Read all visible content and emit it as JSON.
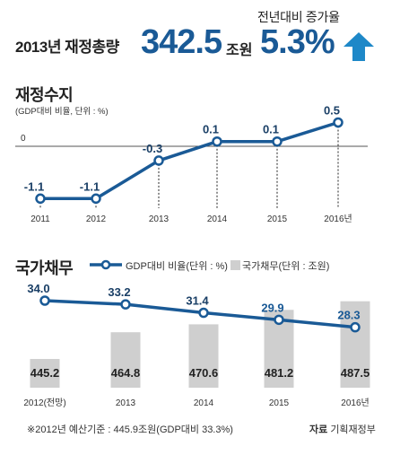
{
  "headline": {
    "label": "2013년 재정총량",
    "total_value": "342.5",
    "total_unit": "조원",
    "rate_label": "전년대비 증가율",
    "rate_value": "5.3%",
    "arrow_color": "#1e88c8"
  },
  "colors": {
    "line": "#1a5a96",
    "bar": "#cfcfcf",
    "dashed": "#222222"
  },
  "chart_data": [
    {
      "type": "line",
      "title": "재정수지",
      "subtitle": "(GDP대비 비율, 단위 : %)",
      "x": [
        "2011",
        "2012",
        "2013",
        "2014",
        "2015",
        "2016년"
      ],
      "series": [
        {
          "values": [
            -1.1,
            -1.1,
            -0.3,
            0.1,
            0.1,
            0.5
          ]
        }
      ],
      "data_labels": [
        "-1.1",
        "-1.1",
        "-0.3",
        "0.1",
        "0.1",
        "0.5"
      ],
      "zero_label": "0",
      "ylim": [
        -1.3,
        0.65
      ],
      "grid": false
    },
    {
      "type": "bar",
      "title": "국가채무",
      "categories": [
        "2012(전망)",
        "2013",
        "2014",
        "2015",
        "2016년"
      ],
      "series": [
        {
          "name": "GDP대비 비율(단위 : %)",
          "kind": "line",
          "values": [
            34.0,
            33.2,
            31.4,
            29.9,
            28.3
          ],
          "labels": [
            "34.0",
            "33.2",
            "31.4",
            "29.9",
            "28.3"
          ]
        },
        {
          "name": "국가채무(단위 : 조원)",
          "kind": "bar",
          "values": [
            445.2,
            464.8,
            470.6,
            481.2,
            487.5
          ],
          "labels": [
            "445.2",
            "464.8",
            "470.6",
            "481.2",
            "487.5"
          ]
        }
      ],
      "legend_position": "top-right"
    }
  ],
  "footer": {
    "note": "※2012년 예산기준 : 445.9조원(GDP대비 33.3%)",
    "source_label": "자료",
    "source_value": "기획재정부"
  }
}
